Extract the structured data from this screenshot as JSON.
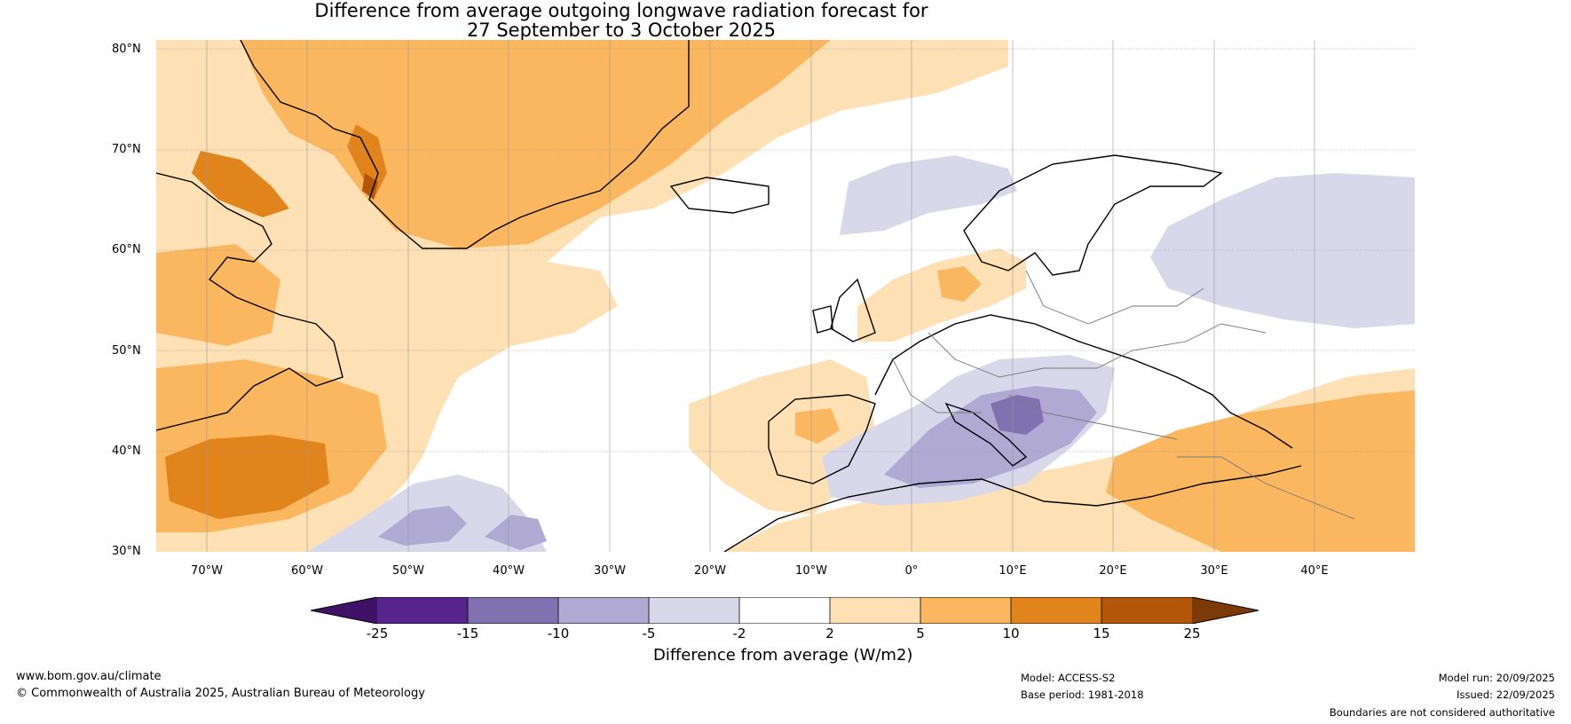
{
  "title": {
    "line1": "Difference from average outgoing longwave radiation forecast for",
    "line2": "27 September to 3 October 2025"
  },
  "lat_labels": [
    "80°N",
    "70°N",
    "60°N",
    "50°N",
    "40°N",
    "30°N"
  ],
  "lon_labels": [
    "70°W",
    "60°W",
    "50°W",
    "40°W",
    "30°W",
    "20°W",
    "10°W",
    "0°",
    "10°E",
    "20°E",
    "30°E",
    "40°E"
  ],
  "colorbar": {
    "ticks": [
      "-25",
      "-15",
      "-10",
      "-5",
      "-2",
      "2",
      "5",
      "10",
      "15",
      "25"
    ],
    "colors": [
      "#3f1268",
      "#57248b",
      "#8072b0",
      "#b0a9d4",
      "#d9d8eb",
      "#ffffff",
      "#fde0b4",
      "#fbb760",
      "#e1841c",
      "#b25709",
      "#7b3a08"
    ],
    "label": "Difference from average (W/m2)"
  },
  "footer": {
    "website": "www.bom.gov.au/climate",
    "copyright": "© Commonwealth of Australia 2025, Australian Bureau of Meteorology",
    "model": "Model: ACCESS-S2",
    "base_period": "Base period: 1981-2018",
    "model_run": "Model run: 20/09/2025",
    "issued": "Issued: 22/09/2025",
    "disclaimer": "Boundaries are not considered authoritative"
  }
}
